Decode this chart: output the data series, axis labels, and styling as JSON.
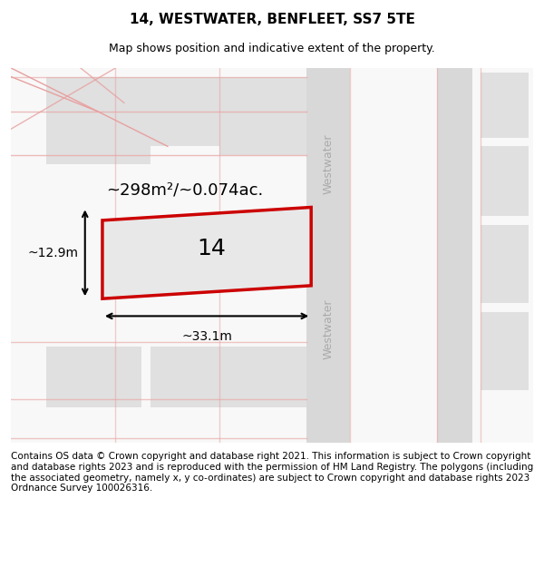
{
  "title": "14, WESTWATER, BENFLEET, SS7 5TE",
  "subtitle": "Map shows position and indicative extent of the property.",
  "footer": "Contains OS data © Crown copyright and database right 2021. This information is subject to Crown copyright and database rights 2023 and is reproduced with the permission of HM Land Registry. The polygons (including the associated geometry, namely x, y co-ordinates) are subject to Crown copyright and database rights 2023 Ordnance Survey 100026316.",
  "bg_color": "#f5f5f5",
  "map_bg": "#ffffff",
  "plot_color": "#cc0000",
  "plot_fill": "#e8e8e8",
  "road_color": "#d0d0d0",
  "road_line_color": "#e8a0a0",
  "property_label": "14",
  "area_label": "~298m²/~0.074ac.",
  "width_label": "~33.1m",
  "height_label": "~12.9m",
  "street_name": "Westwater",
  "title_fontsize": 11,
  "subtitle_fontsize": 9,
  "footer_fontsize": 7.5
}
